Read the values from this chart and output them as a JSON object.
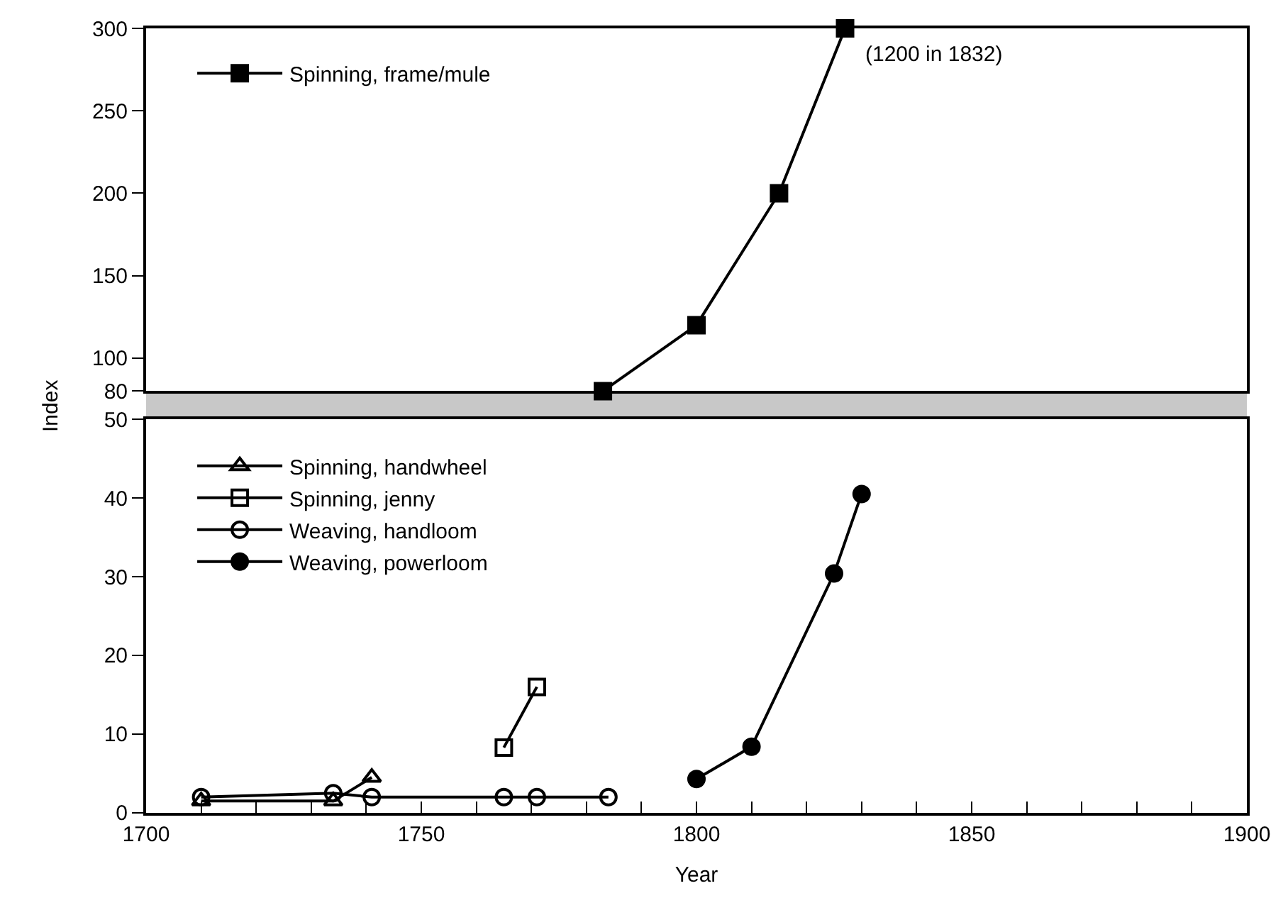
{
  "chart_data": [
    {
      "type": "line",
      "xlim": [
        1700,
        1900
      ],
      "ylim": [
        80,
        300
      ],
      "yticks": [
        80,
        100,
        150,
        200,
        250,
        300
      ],
      "tick_labels": "y",
      "legend": "top left",
      "line_style": "solid",
      "series": [
        {
          "name": "Spinning, frame/mule",
          "color": "#000000",
          "marker": "square",
          "x": [
            1783,
            1800,
            1815,
            1827
          ],
          "values": [
            80,
            120,
            200,
            300
          ]
        }
      ],
      "annotations": [
        {
          "text": "(1200 in 1832)",
          "x": 1827,
          "y": 300
        }
      ]
    },
    {
      "type": "line",
      "xlabel": "Year",
      "ylabel": "Index",
      "xlim": [
        1700,
        1900
      ],
      "ylim": [
        0,
        50
      ],
      "xticks": [
        1700,
        {
          "value": 1710,
          "label": null
        },
        {
          "value": 1720,
          "label": null
        },
        {
          "value": 1730,
          "label": null
        },
        {
          "value": 1740,
          "label": null
        },
        1750,
        {
          "value": 1760,
          "label": null
        },
        {
          "value": 1770,
          "label": null
        },
        {
          "value": 1780,
          "label": null
        },
        {
          "value": 1790,
          "label": null
        },
        1800,
        {
          "value": 1810,
          "label": null
        },
        {
          "value": 1820,
          "label": null
        },
        {
          "value": 1830,
          "label": null
        },
        {
          "value": 1840,
          "label": null
        },
        1850,
        {
          "value": 1860,
          "label": null
        },
        {
          "value": 1870,
          "label": null
        },
        {
          "value": 1880,
          "label": null
        },
        {
          "value": 1890,
          "label": null
        },
        1900
      ],
      "yticks": [
        0,
        10,
        20,
        30,
        40,
        50
      ],
      "legend": "top left",
      "line_style": "solid",
      "series": [
        {
          "name": "Spinning, handwheel",
          "color": "#000000",
          "marker": "triangle-open",
          "x": [
            1710,
            1734,
            1741
          ],
          "values": [
            1.5,
            1.5,
            4.5
          ]
        },
        {
          "name": "Spinning, jenny",
          "color": "#000000",
          "marker": "square-open",
          "x": [
            1765,
            1771
          ],
          "values": [
            8.3,
            16
          ]
        },
        {
          "name": "Weaving, handloom",
          "color": "#000000",
          "marker": "circle-open",
          "x": [
            1710,
            1734,
            1741,
            1765,
            1771,
            1784
          ],
          "values": [
            2,
            2.5,
            2,
            2,
            2,
            2
          ]
        },
        {
          "name": "Weaving, powerloom",
          "color": "#000000",
          "marker": "circle",
          "x": [
            1800,
            1810,
            1825,
            1830
          ],
          "values": [
            4.3,
            8.4,
            30.4,
            40.5
          ]
        }
      ]
    }
  ]
}
